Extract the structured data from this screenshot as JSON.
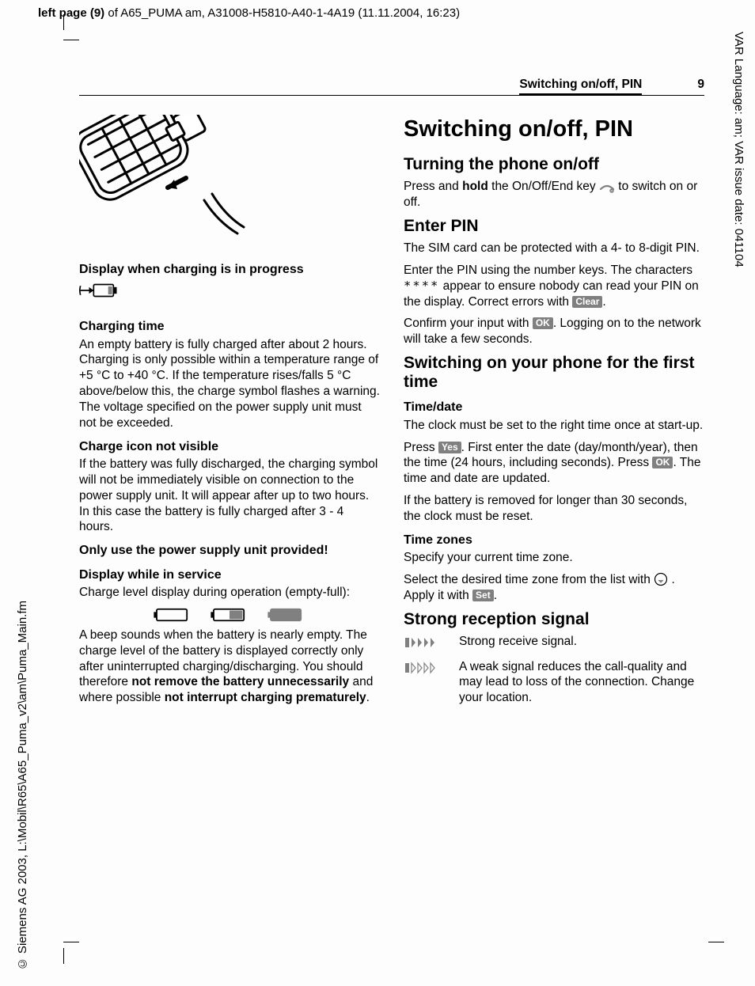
{
  "meta": {
    "top": "left page (9) of A65_PUMA am, A31008-H5810-A40-1-4A19 (11.11.2004, 16:23)",
    "right": "VAR Language: am; VAR issue date: 041104",
    "left": "© Siemens AG 2003, L:\\Mobil\\R65\\A65_Puma_v2\\am\\Puma_Main.fm"
  },
  "running_head": {
    "title": "Switching on/off, PIN",
    "page": "9"
  },
  "left_col": {
    "charging_caption": "Display when charging is in progress",
    "h_chargetime": "Charging time",
    "p_chargetime": "An empty battery is fully charged after about 2 hours. Charging is only possible within a temperature range of +5 °C to +40 °C. If the temperature rises/falls 5 °C above/below this, the charge symbol flashes a warning. The voltage specified on the power supply unit must not be exceeded.",
    "h_iconnv": "Charge icon not visible",
    "p_iconnv": "If the battery was fully discharged, the charging symbol will not be immediately visible on connection to the power supply unit. It will appear after up to two hours. In this case the battery is fully charged after 3 - 4 hours.",
    "h_onlyuse": "Only use the power supply unit provided!",
    "h_service": "Display while in service",
    "p_service": "Charge level display during operation (empty-full):",
    "p_beep_a": "A beep sounds when the battery is nearly empty. The charge level of the battery is displayed correctly only after uninterrupted charging/discharging. You should therefore ",
    "p_beep_b": "not remove the battery unnecessarily",
    "p_beep_c": " and where possible ",
    "p_beep_d": "not interrupt charging prematurely",
    "p_beep_e": "."
  },
  "right_col": {
    "h1": "Switching on/off, PIN",
    "h_turning": "Turning the phone on/off",
    "p_turning_a": "Press and ",
    "p_turning_b": "hold",
    "p_turning_c": " the On/Off/End key ",
    "p_turning_d": " to switch on or off.",
    "h_enterpin": "Enter PIN",
    "p_pin1": "The SIM card can be protected with a 4- to 8-digit PIN.",
    "p_pin2_a": "Enter the PIN using the number keys. The characters ",
    "p_pin2_stars": "****",
    "p_pin2_b": " appear to ensure nobody can read your PIN on the display. Correct errors with ",
    "key_clear": "Clear",
    "p_pin3_a": "Confirm your input with ",
    "key_ok": "OK",
    "p_pin3_b": ". Logging on to the network will take a few seconds.",
    "h_firsttime": "Switching on your phone for the first time",
    "h_timedate": "Time/date",
    "p_td1": "The clock must be set to the right time once at start-up.",
    "p_td2_a": "Press ",
    "key_yes": "Yes",
    "p_td2_b": ". First enter the date (day/month/year), then the time (24 hours, including seconds). Press ",
    "p_td2_c": ". The time and date are updated.",
    "p_td3": "If the battery is removed for longer than 30 seconds, the clock must be reset.",
    "h_tz": "Time zones",
    "p_tz1": "Specify your current time zone.",
    "p_tz2_a": "Select the desired time zone from the list with ",
    "p_tz2_b": ". Apply it with ",
    "key_set": "Set",
    "h_signal": "Strong reception signal",
    "sig_strong": "Strong receive signal.",
    "sig_weak": "A weak signal reduces the call-quality and may lead to loss of the connection. Change your location."
  },
  "colors": {
    "keycap_bg": "#808080",
    "stroke": "#000000",
    "fill_grey": "#808080"
  }
}
